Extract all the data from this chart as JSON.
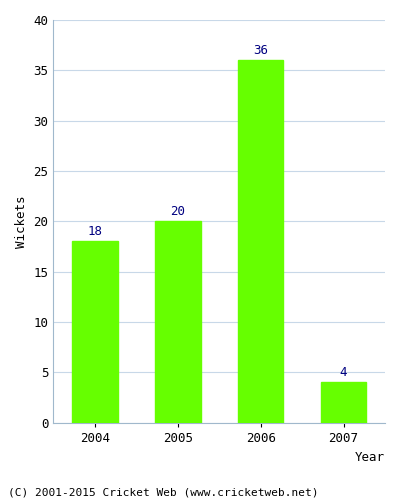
{
  "categories": [
    "2004",
    "2005",
    "2006",
    "2007"
  ],
  "values": [
    18,
    20,
    36,
    4
  ],
  "bar_color": "#66ff00",
  "label_color": "#000080",
  "xlabel": "Year",
  "ylabel": "Wickets",
  "ylim": [
    0,
    40
  ],
  "yticks": [
    0,
    5,
    10,
    15,
    20,
    25,
    30,
    35,
    40
  ],
  "background_color": "#ffffff",
  "plot_bg_color": "#ffffff",
  "grid_color": "#c8d8e8",
  "spine_color": "#a0b8cc",
  "footer_text": "(C) 2001-2015 Cricket Web (www.cricketweb.net)",
  "label_fontsize": 9,
  "axis_label_fontsize": 9,
  "tick_fontsize": 9,
  "footer_fontsize": 8
}
